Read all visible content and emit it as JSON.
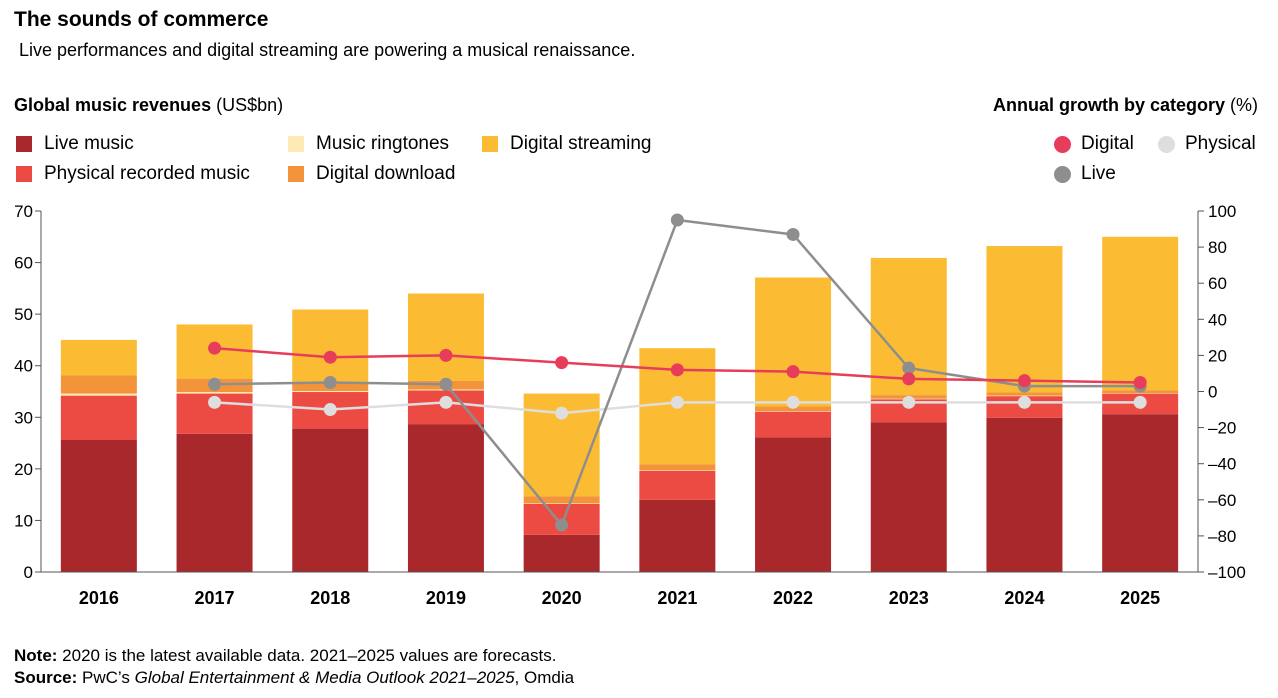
{
  "header": {
    "title": "The sounds of commerce",
    "subtitle": "Live performances and digital streaming are powering a musical renaissance."
  },
  "left_axis_heading": {
    "bold": "Global music revenues",
    "unit": " (US$bn)"
  },
  "right_axis_heading": {
    "bold": "Annual growth by category",
    "unit": " (%)"
  },
  "legend_bars": [
    {
      "label": "Live music",
      "color": "#A8282B"
    },
    {
      "label": "Music ringtones",
      "color": "#FDEAB5"
    },
    {
      "label": "Digital streaming",
      "color": "#FBBC34"
    },
    {
      "label": "Physical recorded music",
      "color": "#EC4B43"
    },
    {
      "label": "Digital download",
      "color": "#F3943B"
    }
  ],
  "legend_lines": [
    {
      "label": "Digital",
      "color": "#E73D5A"
    },
    {
      "label": "Physical",
      "color": "#DEDEDE"
    },
    {
      "label": "Live",
      "color": "#8E8E8E"
    }
  ],
  "footer": {
    "note_bold": "Note:",
    "note_text": " 2020 is the latest available data. 2021–2025 values are forecasts.",
    "source_bold": "Source:",
    "source_text1": " PwC’s ",
    "source_italic": "Global Entertainment & Media Outlook 2021–2025",
    "source_text2": ", Omdia"
  },
  "chart_data": {
    "type": "bar",
    "categories": [
      "2016",
      "2017",
      "2018",
      "2019",
      "2020",
      "2021",
      "2022",
      "2023",
      "2024",
      "2025"
    ],
    "stacked": true,
    "ylim": [
      0,
      70
    ],
    "yticks": [
      "0",
      "10",
      "20",
      "30",
      "40",
      "50",
      "60",
      "70"
    ],
    "y2lim": [
      -100,
      100
    ],
    "y2ticks": [
      "100",
      "80",
      "60",
      "40",
      "20",
      "0",
      "–20",
      "–40",
      "–60",
      "–80",
      "–100"
    ],
    "series": [
      {
        "name": "Live music",
        "color": "#A8282B",
        "values": [
          25.6,
          26.8,
          27.8,
          28.6,
          7.2,
          14.0,
          26.1,
          29.0,
          29.9,
          30.6
        ]
      },
      {
        "name": "Physical recorded music",
        "color": "#EC4B43",
        "values": [
          8.6,
          7.8,
          7.1,
          6.6,
          6.0,
          5.6,
          5.0,
          4.5,
          4.2,
          4.0
        ]
      },
      {
        "name": "Music ringtones",
        "color": "#FDEAB5",
        "values": [
          0.4,
          0.3,
          0.2,
          0.2,
          0.1,
          0.1,
          0.1,
          0.1,
          0.1,
          0.1
        ]
      },
      {
        "name": "Digital download",
        "color": "#F3943B",
        "values": [
          3.5,
          2.6,
          1.7,
          1.7,
          1.4,
          1.2,
          0.9,
          0.7,
          0.6,
          0.5
        ]
      },
      {
        "name": "Digital streaming",
        "color": "#FBBC34",
        "values": [
          6.9,
          10.5,
          14.1,
          16.9,
          19.9,
          22.5,
          25.0,
          26.6,
          28.4,
          29.8
        ]
      }
    ],
    "lines": [
      {
        "name": "Digital",
        "color": "#E73D5A",
        "axis": "right",
        "x": [
          "2017",
          "2018",
          "2019",
          "2020",
          "2021",
          "2022",
          "2023",
          "2024",
          "2025"
        ],
        "values": [
          24,
          19,
          20,
          16,
          12,
          11,
          7,
          6,
          5
        ]
      },
      {
        "name": "Physical",
        "color": "#DEDEDE",
        "axis": "right",
        "x": [
          "2017",
          "2018",
          "2019",
          "2020",
          "2021",
          "2022",
          "2023",
          "2024",
          "2025"
        ],
        "values": [
          -6,
          -10,
          -6,
          -12,
          -6,
          -6,
          -6,
          -6,
          -6
        ]
      },
      {
        "name": "Live",
        "color": "#8E8E8E",
        "axis": "right",
        "x": [
          "2017",
          "2018",
          "2019",
          "2020",
          "2021",
          "2022",
          "2023",
          "2024",
          "2025"
        ],
        "values": [
          4,
          5,
          4,
          -74,
          95,
          87,
          13,
          3,
          3
        ]
      }
    ],
    "grid": false
  }
}
